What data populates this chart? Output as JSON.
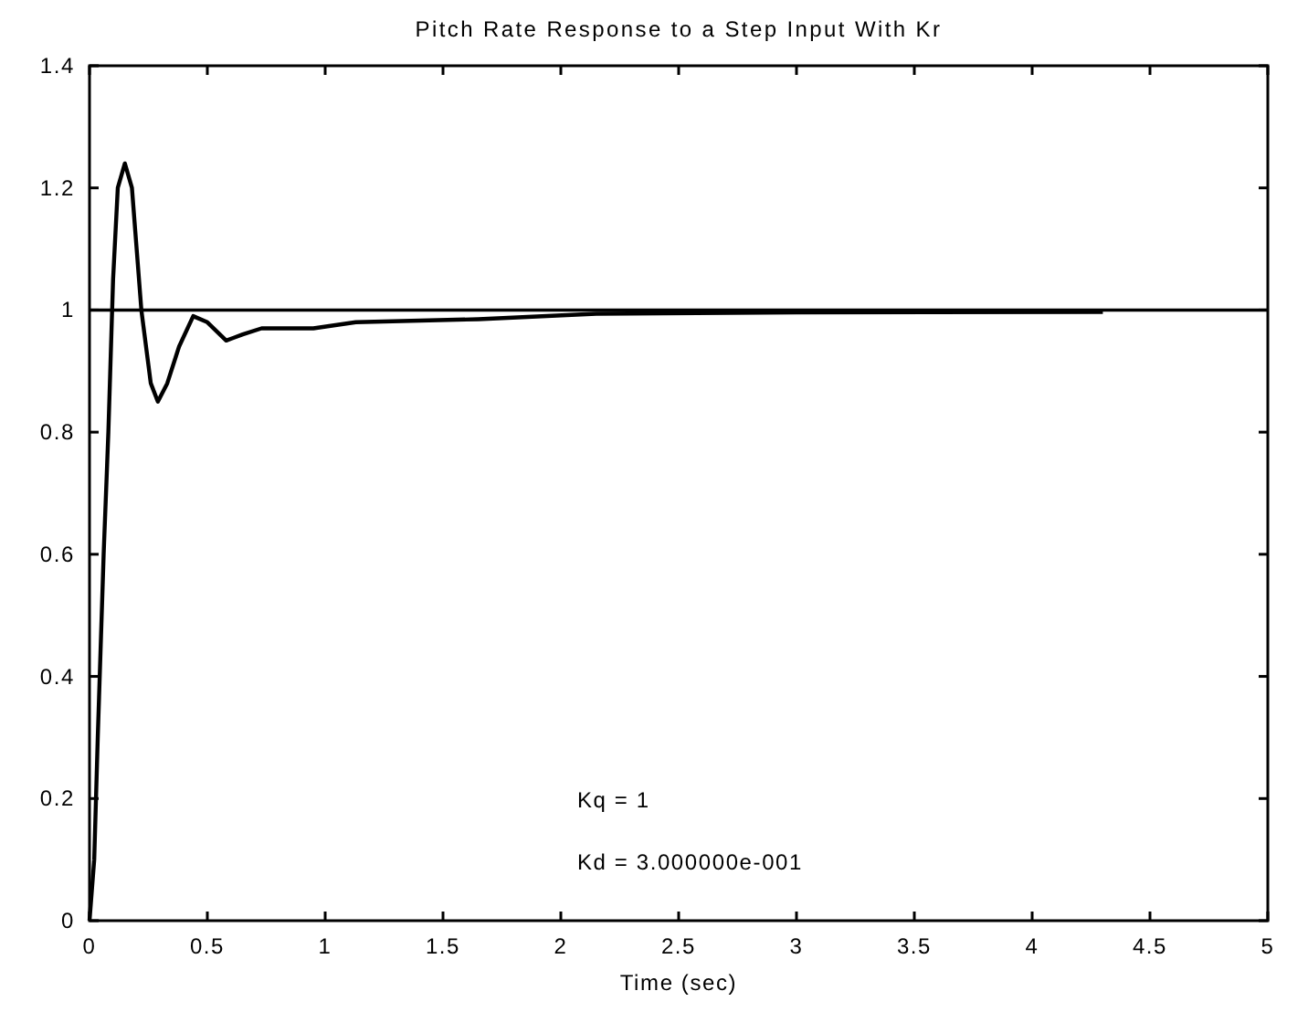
{
  "chart_data": {
    "type": "line",
    "title": "Pitch Rate Response to a Step Input With Kr",
    "xlabel": "Time (sec)",
    "xlim": [
      0,
      5
    ],
    "xticks": [
      0,
      0.5,
      1,
      1.5,
      2,
      2.5,
      3,
      3.5,
      4,
      4.5,
      5
    ],
    "ylim": [
      0,
      1.4
    ],
    "yticks": [
      0,
      0.2,
      0.4,
      0.6,
      0.8,
      1,
      1.2,
      1.4
    ],
    "ref_lines": [
      {
        "axis": "y",
        "value": 1,
        "color": "#000000"
      }
    ],
    "annotations": [
      "Kq = 1",
      "Kd = 3.000000e-001"
    ],
    "series": [
      {
        "color": "#000000",
        "x": [
          0,
          0.02,
          0.035,
          0.06,
          0.08,
          0.1,
          0.12,
          0.15,
          0.18,
          0.22,
          0.26,
          0.29,
          0.33,
          0.38,
          0.44,
          0.5,
          0.58,
          0.65,
          0.73,
          0.95,
          1.13,
          1.65,
          2.15,
          3,
          4.3
        ],
        "values": [
          0,
          0.1,
          0.3,
          0.6,
          0.8,
          1.05,
          1.2,
          1.24,
          1.2,
          1,
          0.88,
          0.85,
          0.88,
          0.94,
          0.99,
          0.98,
          0.95,
          0.96,
          0.97,
          0.97,
          0.98,
          0.985,
          0.994,
          0.996,
          0.997
        ]
      }
    ]
  }
}
